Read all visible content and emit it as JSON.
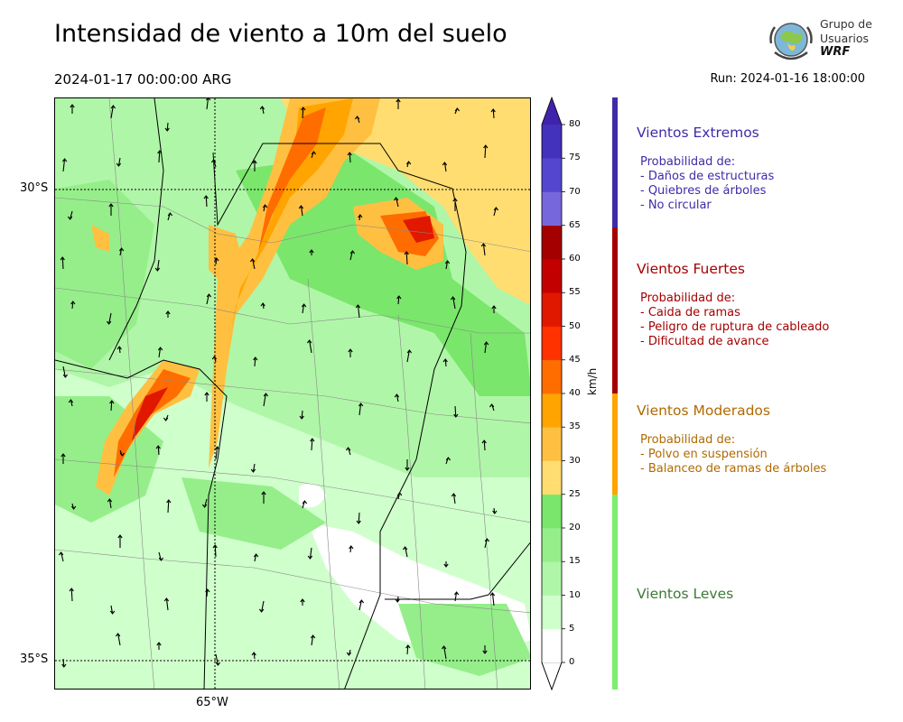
{
  "header": {
    "title": "Intensidad de viento a 10m del suelo",
    "valid_date": "2024-01-17 00:00:00 ARG",
    "run": "Run: 2024-01-16 18:00:00"
  },
  "logo": {
    "line1": "Grupo de",
    "line2": "Usuarios",
    "line3": "WRF"
  },
  "map": {
    "lat_labels": [
      "30°S",
      "35°S"
    ],
    "lon_labels": [
      "65°W"
    ]
  },
  "colorbar": {
    "unit": "km/h",
    "ticks": [
      "0",
      "5",
      "10",
      "15",
      "20",
      "25",
      "30",
      "35",
      "40",
      "45",
      "50",
      "55",
      "60",
      "65",
      "70",
      "75",
      "80"
    ],
    "colors": [
      "#ffffff",
      "#cfffcb",
      "#b0f6a8",
      "#95ee8a",
      "#7ae66c",
      "#ffdd71",
      "#ffc041",
      "#ffa400",
      "#ff6d00",
      "#ff3200",
      "#e01800",
      "#c20000",
      "#a50000",
      "#7767dc",
      "#5546d0",
      "#4332bb",
      "#3f24ab"
    ],
    "extend_top_color": "#3f24ab"
  },
  "legend": {
    "categories": [
      {
        "title": "Vientos Extremos",
        "lines": [
          "Probabilidad de:",
          "- Daños de estructuras",
          "- Quiebres de árboles",
          "- No circular"
        ],
        "color": "#3f2ba8"
      },
      {
        "title": "Vientos Fuertes",
        "lines": [
          "Probabilidad de:",
          "- Caida de ramas",
          "- Peligro de ruptura de cableado",
          "- Dificultad de avance"
        ],
        "color": "#a50000"
      },
      {
        "title": "Vientos Moderados",
        "lines": [
          "Probabilidad de:",
          "- Polvo en suspensión",
          "- Balanceo de ramas de árboles"
        ],
        "color": "#b06a00"
      },
      {
        "title": "Vientos Leves",
        "lines": [],
        "color": "#3c7a36"
      }
    ],
    "bar_colors": [
      "#3f2ba8",
      "#a50000",
      "#ffa400",
      "#7cee6e"
    ]
  }
}
